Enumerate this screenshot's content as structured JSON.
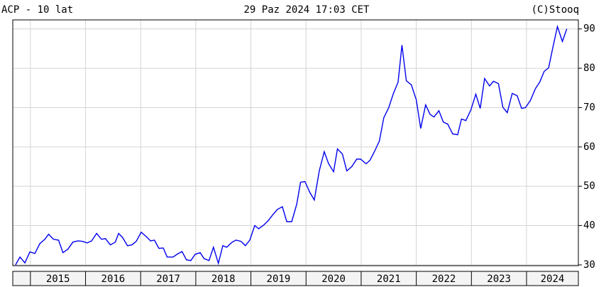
{
  "chart_data": {
    "type": "line",
    "title": "ACP - 10 lat",
    "subtitle": "29 Paz 2024 17:03 CET",
    "source": "(C)Stooq",
    "grid": true,
    "xlim": [
      2014.68,
      2024.94
    ],
    "xticks": [
      2015,
      2016,
      2017,
      2018,
      2019,
      2020,
      2021,
      2022,
      2023,
      2024
    ],
    "ylim": [
      29.8,
      92.3
    ],
    "yticks": [
      30,
      40,
      50,
      60,
      70,
      80,
      90
    ],
    "series": [
      {
        "color": "#0000ee",
        "x": [
          2014.73,
          2014.81,
          2014.9,
          2014.99,
          2015.08,
          2015.17,
          2015.26,
          2015.33,
          2015.42,
          2015.51,
          2015.59,
          2015.68,
          2015.77,
          2015.86,
          2015.94,
          2016.03,
          2016.11,
          2016.2,
          2016.29,
          2016.36,
          2016.45,
          2016.54,
          2016.6,
          2016.67,
          2016.76,
          2016.84,
          2016.92,
          2017.01,
          2017.1,
          2017.18,
          2017.25,
          2017.33,
          2017.41,
          2017.48,
          2017.59,
          2017.66,
          2017.75,
          2017.83,
          2017.91,
          2017.99,
          2018.08,
          2018.15,
          2018.24,
          2018.32,
          2018.41,
          2018.49,
          2018.56,
          2018.66,
          2018.73,
          2018.82,
          2018.9,
          2018.98,
          2019.07,
          2019.14,
          2019.23,
          2019.31,
          2019.4,
          2019.48,
          2019.57,
          2019.65,
          2019.74,
          2019.83,
          2019.9,
          2019.98,
          2020.07,
          2020.15,
          2020.24,
          2020.33,
          2020.41,
          2020.5,
          2020.57,
          2020.66,
          2020.74,
          2020.83,
          2020.92,
          2020.99,
          2021.09,
          2021.16,
          2021.24,
          2021.33,
          2021.41,
          2021.5,
          2021.58,
          2021.67,
          2021.74,
          2021.82,
          2021.91,
          2022.0,
          2022.08,
          2022.17,
          2022.25,
          2022.32,
          2022.41,
          2022.49,
          2022.57,
          2022.66,
          2022.75,
          2022.82,
          2022.9,
          2022.99,
          2023.08,
          2023.16,
          2023.24,
          2023.33,
          2023.4,
          2023.49,
          2023.57,
          2023.65,
          2023.74,
          2023.83,
          2023.91,
          2023.98,
          2024.07,
          2024.16,
          2024.24,
          2024.32,
          2024.4,
          2024.47,
          2024.56,
          2024.65,
          2024.73
        ],
        "values": [
          30.0,
          32,
          30.5,
          33.3,
          32.9,
          35.4,
          36.5,
          37.8,
          36.5,
          36.3,
          33.1,
          34,
          35.8,
          36.1,
          36,
          35.6,
          36.1,
          38,
          36.5,
          36.7,
          35.1,
          35.8,
          38,
          37,
          34.9,
          35.1,
          36,
          38.3,
          37.2,
          36.1,
          36.3,
          34.2,
          34.3,
          32,
          32,
          32.7,
          33.4,
          31.3,
          31.1,
          32.7,
          33.1,
          31.6,
          31.1,
          34.5,
          30.4,
          34.9,
          34.5,
          35.8,
          36.3,
          36,
          34.9,
          36.3,
          40,
          39.2,
          40.1,
          41.2,
          42.8,
          44.1,
          44.8,
          41,
          41,
          45.4,
          51,
          51.2,
          48.4,
          46.5,
          53.9,
          58.8,
          55.7,
          53.7,
          59.5,
          58.2,
          53.9,
          55,
          56.9,
          56.9,
          55.7,
          56.6,
          58.8,
          61.5,
          67.4,
          70,
          73.4,
          76.5,
          85.9,
          76.8,
          75.8,
          72,
          64.7,
          70.7,
          68.3,
          67.6,
          69.2,
          66.3,
          65.8,
          63.3,
          63.1,
          67.1,
          66.7,
          69.4,
          73.4,
          69.8,
          77.4,
          75.5,
          76.7,
          76.1,
          70.1,
          68.7,
          73.6,
          73,
          69.8,
          70,
          71.8,
          74.8,
          76.5,
          79.2,
          80.1,
          84.8,
          90.6,
          86.8,
          90
        ]
      }
    ]
  }
}
